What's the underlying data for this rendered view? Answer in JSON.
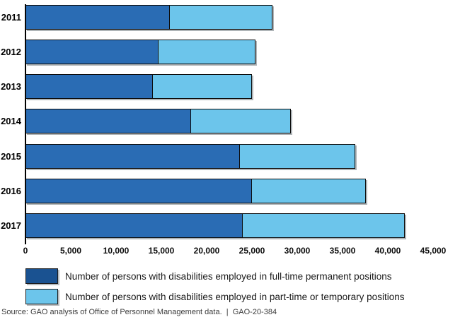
{
  "chart_data": {
    "type": "bar",
    "orientation": "horizontal",
    "stacked": true,
    "title": "",
    "categories": [
      "2011",
      "2012",
      "2013",
      "2014",
      "2015",
      "2016",
      "2017"
    ],
    "series": [
      {
        "name": "Number of persons with disabilities employed in full-time permanent positions",
        "color": "#2a6cb4",
        "legend_swatch_color": "#1a5291",
        "values": [
          15900,
          14700,
          14100,
          18300,
          23700,
          25000,
          24000
        ]
      },
      {
        "name": "Number of persons with disabilities employed in part-time or temporary positions",
        "color": "#6cc5eb",
        "legend_swatch_color": "#6cc5eb",
        "values": [
          11400,
          10700,
          10900,
          11000,
          12700,
          12600,
          17900
        ]
      }
    ],
    "xlim": [
      0,
      45000
    ],
    "x_ticks": [
      0,
      5000,
      10000,
      15000,
      20000,
      25000,
      30000,
      35000,
      40000,
      45000
    ],
    "x_tick_labels": [
      "0",
      "5,000",
      "10,000",
      "15,000",
      "20,000",
      "25,000",
      "30,000",
      "35,000",
      "40,000",
      "45,000"
    ],
    "grid": false,
    "legend_position": "bottom-left",
    "bar_border_color": "#0d0d0d"
  },
  "source_note": "Source: GAO analysis of Office of Personnel Management data.  |  GAO-20-384"
}
